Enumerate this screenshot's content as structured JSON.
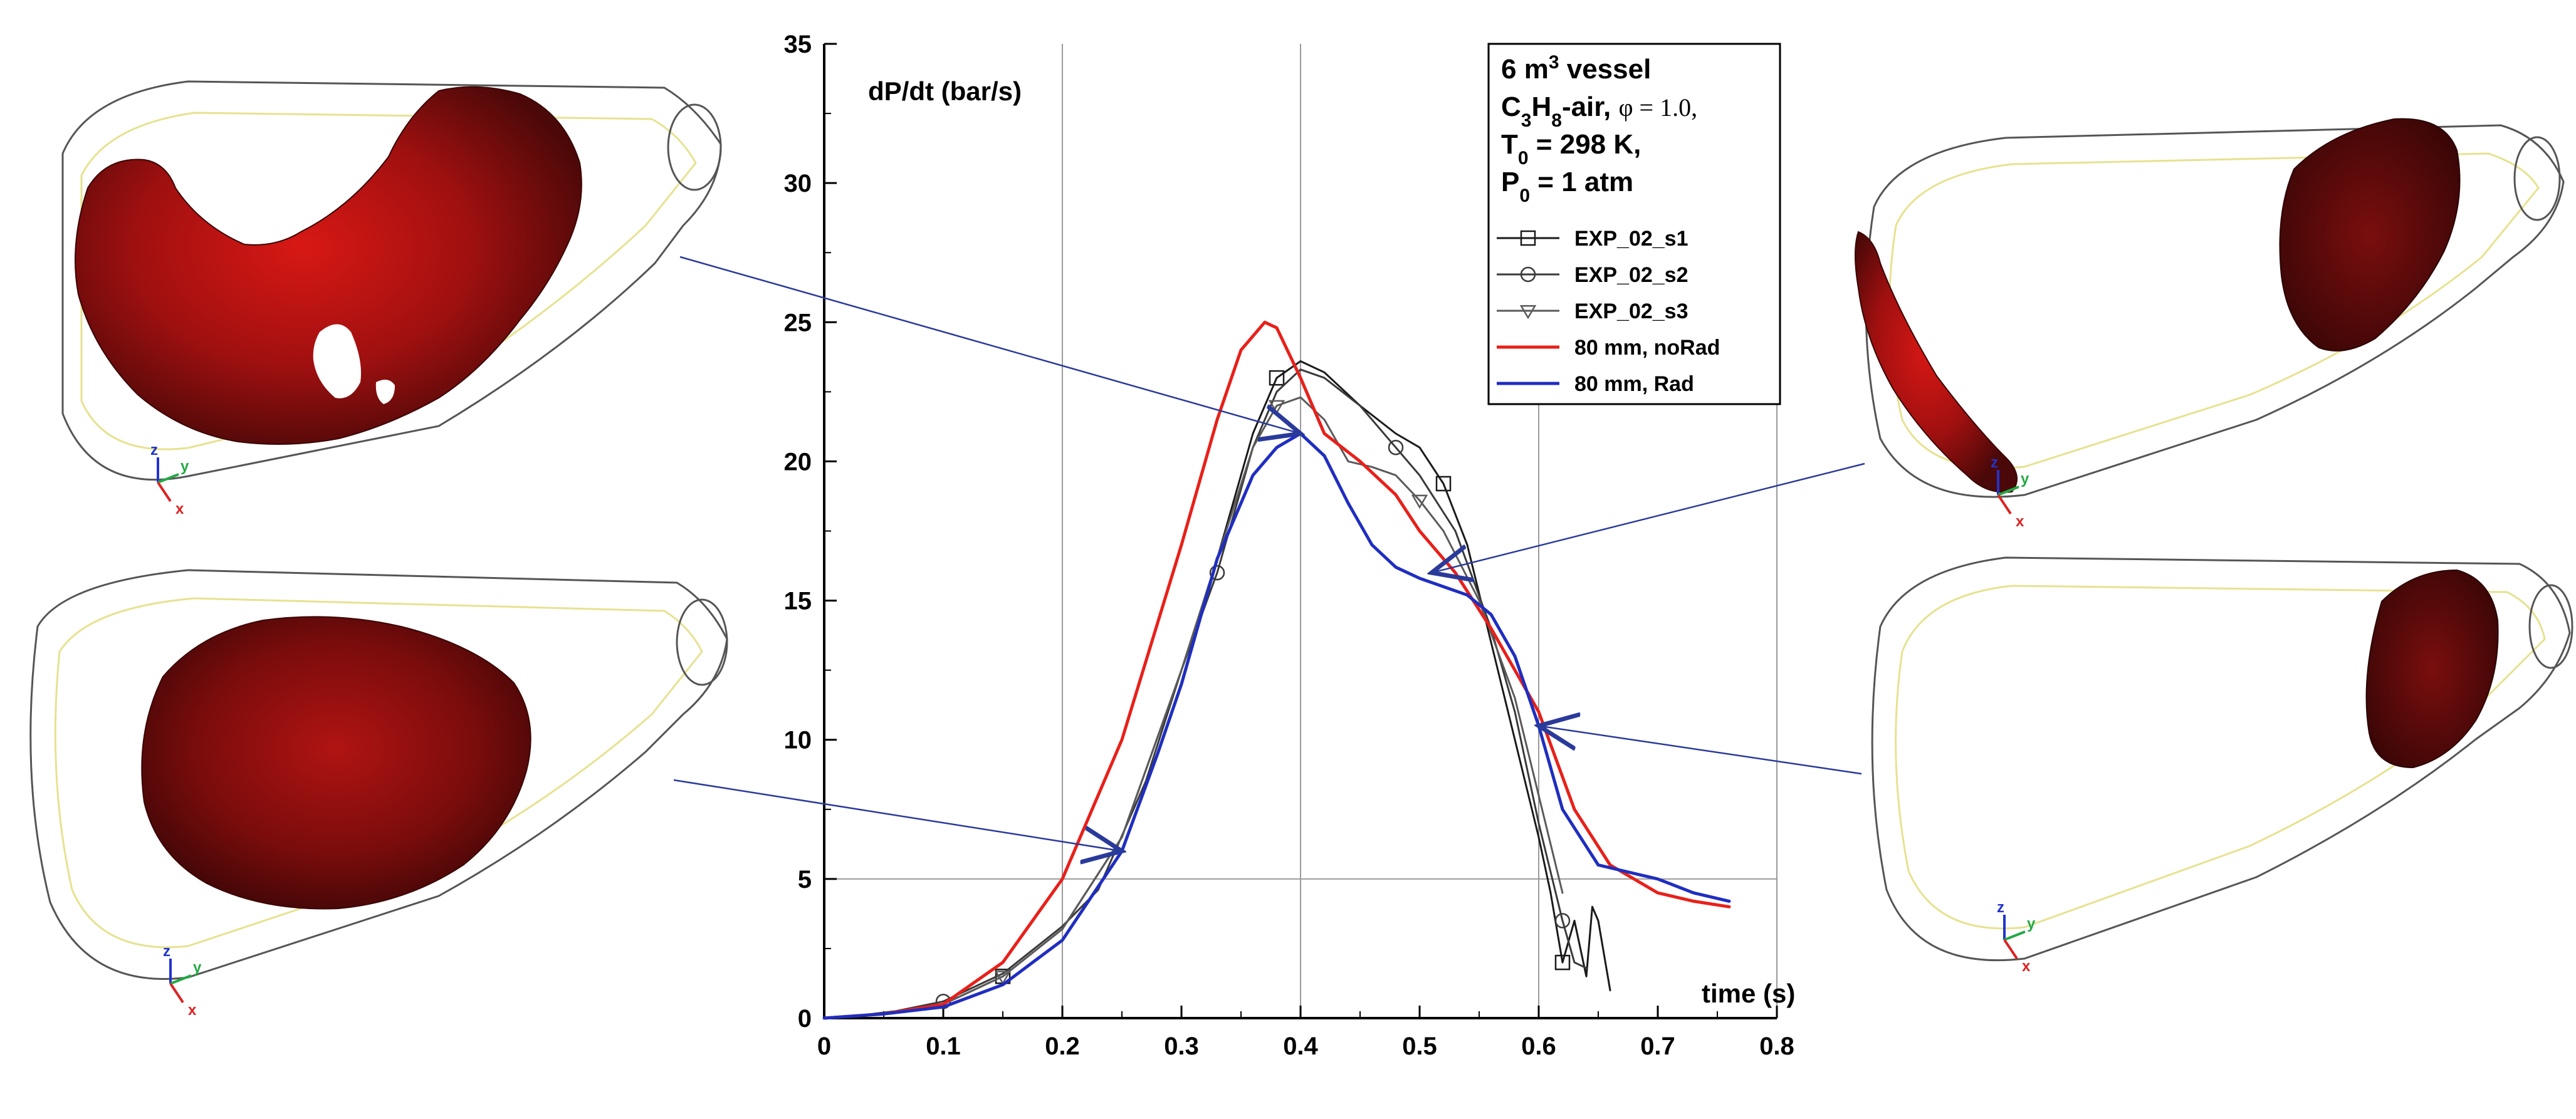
{
  "chart_data": {
    "type": "line",
    "ylabel": "dP/dt (bar/s)",
    "xlabel": "time (s)",
    "xlim": [
      0,
      0.8
    ],
    "ylim": [
      0,
      35
    ],
    "x_ticks": [
      "0",
      "0.1",
      "0.2",
      "0.3",
      "0.4",
      "0.5",
      "0.6",
      "0.7",
      "0.8"
    ],
    "y_ticks": [
      "0",
      "5",
      "10",
      "15",
      "20",
      "25",
      "30",
      "35"
    ],
    "grid": {
      "vertical_at_x": [
        0.2,
        0.4,
        0.6,
        0.8
      ],
      "horizontal_at_y": [
        5
      ]
    },
    "legend": {
      "placement": "top-right",
      "title_lines": [
        {
          "segments": [
            {
              "t": "6 m"
            },
            {
              "t": "3",
              "sup": true
            },
            {
              "t": " vessel"
            }
          ]
        },
        {
          "segments": [
            {
              "t": "C"
            },
            {
              "t": "3",
              "sub": true
            },
            {
              "t": "H"
            },
            {
              "t": "8",
              "sub": true
            },
            {
              "t": "-air, "
            },
            {
              "t": "φ = 1.0,",
              "serif": true
            }
          ]
        },
        {
          "segments": [
            {
              "t": "T"
            },
            {
              "t": "0",
              "sub": true
            },
            {
              "t": " = 298 K,"
            }
          ]
        },
        {
          "segments": [
            {
              "t": "P"
            },
            {
              "t": "0",
              "sub": true
            },
            {
              "t": " = 1 atm"
            }
          ]
        }
      ]
    },
    "series": [
      {
        "name": "EXP_02_s1",
        "color": "#1a1a1a",
        "width": 3,
        "marker": "square",
        "x": [
          0.0,
          0.05,
          0.1,
          0.15,
          0.2,
          0.25,
          0.3,
          0.33,
          0.36,
          0.38,
          0.4,
          0.42,
          0.45,
          0.48,
          0.5,
          0.52,
          0.54,
          0.56,
          0.58,
          0.6,
          0.61,
          0.62,
          0.63,
          0.64,
          0.645,
          0.65,
          0.66
        ],
        "y": [
          0.0,
          0.15,
          0.5,
          1.5,
          3.2,
          6.5,
          12.5,
          16.5,
          21.0,
          23.0,
          23.6,
          23.2,
          22.0,
          21.0,
          20.5,
          19.2,
          17.0,
          13.5,
          10.0,
          6.5,
          4.5,
          2.0,
          3.5,
          1.5,
          4.0,
          3.5,
          1.0
        ]
      },
      {
        "name": "EXP_02_s2",
        "color": "#3a3a3a",
        "width": 3,
        "marker": "circle",
        "x": [
          0.0,
          0.03,
          0.06,
          0.1,
          0.15,
          0.2,
          0.23,
          0.27,
          0.3,
          0.33,
          0.36,
          0.38,
          0.4,
          0.42,
          0.45,
          0.48,
          0.5,
          0.53,
          0.56,
          0.58,
          0.6,
          0.62,
          0.63,
          0.64
        ],
        "y": [
          0.0,
          0.1,
          0.25,
          0.6,
          1.6,
          3.3,
          4.6,
          8.5,
          12.5,
          16.0,
          20.5,
          22.5,
          23.3,
          23.0,
          22.0,
          20.5,
          19.5,
          17.5,
          14.0,
          11.0,
          7.0,
          3.5,
          2.0,
          1.8
        ]
      },
      {
        "name": "EXP_02_s3",
        "color": "#5a5a5a",
        "width": 3,
        "marker": "triangle",
        "x": [
          0.0,
          0.05,
          0.1,
          0.15,
          0.2,
          0.25,
          0.3,
          0.33,
          0.36,
          0.38,
          0.4,
          0.42,
          0.44,
          0.46,
          0.48,
          0.5,
          0.52,
          0.55,
          0.58,
          0.6,
          0.62
        ],
        "y": [
          0.0,
          0.15,
          0.5,
          1.5,
          3.2,
          6.5,
          12.5,
          16.5,
          20.5,
          22.0,
          22.3,
          21.5,
          20.0,
          19.8,
          19.5,
          18.6,
          17.5,
          15.0,
          11.5,
          8.0,
          4.5
        ]
      },
      {
        "name": "80 mm, noRad",
        "color": "#e8201a",
        "width": 5,
        "marker": "none",
        "x": [
          0.0,
          0.05,
          0.1,
          0.15,
          0.2,
          0.25,
          0.3,
          0.33,
          0.35,
          0.37,
          0.38,
          0.4,
          0.42,
          0.45,
          0.48,
          0.5,
          0.53,
          0.56,
          0.6,
          0.63,
          0.66,
          0.7,
          0.73,
          0.76
        ],
        "y": [
          0.0,
          0.15,
          0.5,
          2.0,
          5.0,
          10.0,
          17.0,
          21.5,
          24.0,
          25.0,
          24.8,
          23.0,
          21.0,
          20.0,
          18.8,
          17.5,
          16.0,
          14.0,
          11.0,
          7.5,
          5.5,
          4.5,
          4.2,
          4.0
        ]
      },
      {
        "name": "80 mm, Rad",
        "color": "#1f2ec0",
        "width": 5,
        "marker": "none",
        "x": [
          0.0,
          0.05,
          0.1,
          0.15,
          0.2,
          0.25,
          0.28,
          0.3,
          0.33,
          0.36,
          0.38,
          0.4,
          0.42,
          0.44,
          0.46,
          0.48,
          0.5,
          0.52,
          0.54,
          0.56,
          0.58,
          0.6,
          0.62,
          0.65,
          0.68,
          0.7,
          0.73,
          0.76
        ],
        "y": [
          0.0,
          0.15,
          0.4,
          1.2,
          2.8,
          6.0,
          9.5,
          12.0,
          16.5,
          19.5,
          20.5,
          21.0,
          20.2,
          18.5,
          17.0,
          16.2,
          15.8,
          15.5,
          15.2,
          14.5,
          13.0,
          10.5,
          7.5,
          5.5,
          5.2,
          5.0,
          4.5,
          4.2
        ]
      }
    ],
    "annotation_arrows": [
      {
        "from_panel": "top-left",
        "to_x": 0.4,
        "to_y": 21.0
      },
      {
        "from_panel": "bottom-left",
        "to_x": 0.25,
        "to_y": 6.0
      },
      {
        "from_panel": "top-right",
        "to_x": 0.51,
        "to_y": 16.0
      },
      {
        "from_panel": "bottom-right",
        "to_x": 0.6,
        "to_y": 10.5
      }
    ]
  },
  "panels": [
    {
      "id": "top-left",
      "axis_labels": [
        "z",
        "y",
        "x"
      ]
    },
    {
      "id": "bottom-left",
      "axis_labels": [
        "z",
        "y",
        "x"
      ]
    },
    {
      "id": "top-right",
      "axis_labels": [
        "z",
        "y",
        "x"
      ]
    },
    {
      "id": "bottom-right",
      "axis_labels": [
        "z",
        "y",
        "x"
      ]
    }
  ],
  "colors": {
    "flame_dark": "#4a0808",
    "flame_mid": "#a81010",
    "flame_bright": "#e01a14",
    "vessel_outline": "#555555",
    "vessel_inner": "#e6e290",
    "axis_z": "#2233cc",
    "axis_y": "#22aa44",
    "axis_x": "#dd2222",
    "arrow": "#2a3a9a",
    "grid": "#9a9a9a"
  }
}
